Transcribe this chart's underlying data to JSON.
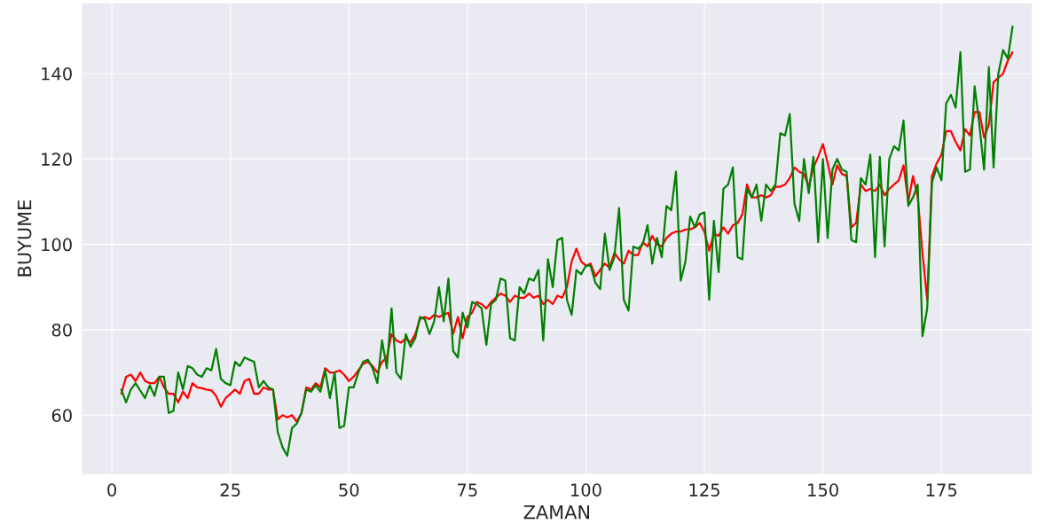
{
  "chart_data": {
    "type": "line",
    "xlabel": "ZAMAN",
    "ylabel": "BUYUME",
    "xlim": [
      -6.4,
      194.2
    ],
    "ylim": [
      46.1,
      156.6
    ],
    "xticks": [
      0,
      25,
      50,
      75,
      100,
      125,
      150,
      175
    ],
    "yticks": [
      60,
      80,
      100,
      120,
      140
    ],
    "grid": true,
    "marker": "none",
    "line_style": "solid",
    "series": [
      {
        "color": "#ff0000",
        "x": [
          2,
          3,
          4,
          5,
          6,
          7,
          8,
          9,
          10,
          11,
          12,
          13,
          14,
          15,
          16,
          17,
          18,
          19,
          20,
          21,
          22,
          23,
          24,
          25,
          26,
          27,
          28,
          29,
          30,
          31,
          32,
          33,
          34,
          35,
          36,
          37,
          38,
          39,
          40,
          41,
          42,
          43,
          44,
          45,
          46,
          47,
          48,
          49,
          50,
          51,
          52,
          53,
          54,
          55,
          56,
          57,
          58,
          59,
          60,
          61,
          62,
          63,
          64,
          65,
          66,
          67,
          68,
          69,
          70,
          71,
          72,
          73,
          74,
          75,
          76,
          77,
          78,
          79,
          80,
          81,
          82,
          83,
          84,
          85,
          86,
          87,
          88,
          89,
          90,
          91,
          92,
          93,
          94,
          95,
          96,
          97,
          98,
          99,
          100,
          101,
          102,
          103,
          104,
          105,
          106,
          107,
          108,
          109,
          110,
          111,
          112,
          113,
          114,
          115,
          116,
          117,
          118,
          119,
          120,
          121,
          122,
          123,
          124,
          125,
          126,
          127,
          128,
          129,
          130,
          131,
          132,
          133,
          134,
          135,
          136,
          137,
          138,
          139,
          140,
          141,
          142,
          143,
          144,
          145,
          146,
          147,
          148,
          149,
          150,
          151,
          152,
          153,
          154,
          155,
          156,
          157,
          158,
          159,
          160,
          161,
          162,
          163,
          164,
          165,
          166,
          167,
          168,
          169,
          170,
          171,
          172,
          173,
          174,
          175,
          176,
          177,
          178,
          179,
          180,
          181,
          182,
          183,
          184,
          185,
          186,
          187,
          188,
          189,
          190
        ],
        "values": [
          65,
          69,
          69.5,
          68,
          70,
          68,
          67.5,
          67.5,
          69,
          66.5,
          65,
          65,
          63,
          65.5,
          64,
          67.5,
          66.5,
          66.3,
          66,
          65.8,
          64.5,
          62,
          64,
          65,
          66,
          65,
          68,
          68.5,
          65,
          65,
          66.5,
          66,
          66,
          59,
          60,
          59.5,
          60,
          58.5,
          60.5,
          66.5,
          66,
          67.5,
          66.5,
          71,
          70,
          70,
          70.5,
          69.5,
          68,
          69,
          70.5,
          72,
          72.5,
          71.5,
          70,
          72.5,
          73.5,
          79,
          77.5,
          77,
          78,
          77,
          79,
          82.5,
          83,
          82.5,
          83.5,
          83,
          83.5,
          84,
          79,
          83,
          78,
          83,
          84,
          86.5,
          86,
          85,
          86.5,
          87.5,
          88.5,
          88,
          86.5,
          88,
          87.5,
          87.5,
          88.5,
          87.5,
          88,
          86,
          87,
          86,
          88,
          87.5,
          90,
          96,
          99,
          96,
          95,
          95.5,
          92.5,
          94,
          95.5,
          94.5,
          98,
          96.5,
          95.5,
          98.5,
          97.5,
          97.5,
          100.5,
          99.5,
          102,
          100,
          99.5,
          101.5,
          102.5,
          103,
          103,
          103.5,
          103.5,
          104,
          105,
          103,
          98.5,
          102.5,
          102,
          104,
          102.5,
          104.5,
          105,
          107,
          114,
          111,
          111,
          111.5,
          111,
          111.5,
          113.5,
          113.5,
          114,
          115.5,
          118,
          117,
          116.5,
          113.5,
          118,
          120.5,
          123.5,
          119,
          114,
          118.5,
          116.5,
          116,
          104,
          105,
          114,
          112.5,
          113,
          112.5,
          114,
          111.5,
          113,
          114,
          115,
          118.5,
          110,
          116,
          111,
          98,
          87,
          116,
          119,
          121,
          126.5,
          126.5,
          124,
          122,
          127,
          125.5,
          131,
          131,
          125,
          128,
          138,
          139,
          140,
          143,
          145
        ]
      },
      {
        "color": "#008000",
        "x": [
          2,
          3,
          4,
          5,
          7,
          8,
          9,
          10,
          11,
          12,
          13,
          14,
          15,
          16,
          17,
          18,
          19,
          20,
          21,
          22,
          23,
          24,
          25,
          26,
          27,
          28,
          29,
          30,
          31,
          32,
          33,
          34,
          35,
          36,
          37,
          38,
          39,
          40,
          41,
          42,
          43,
          44,
          45,
          46,
          47,
          48,
          49,
          50,
          51,
          52,
          53,
          54,
          55,
          56,
          57,
          58,
          59,
          60,
          61,
          62,
          63,
          64,
          65,
          66,
          67,
          68,
          69,
          70,
          71,
          72,
          73,
          74,
          75,
          76,
          77,
          78,
          79,
          80,
          81,
          82,
          83,
          84,
          85,
          86,
          87,
          88,
          89,
          90,
          91,
          92,
          93,
          94,
          95,
          96,
          97,
          98,
          99,
          100,
          101,
          102,
          103,
          104,
          105,
          106,
          107,
          108,
          109,
          110,
          111,
          112,
          113,
          114,
          115,
          116,
          117,
          118,
          119,
          120,
          121,
          122,
          123,
          124,
          125,
          126,
          127,
          128,
          129,
          130,
          131,
          132,
          133,
          134,
          135,
          136,
          137,
          138,
          139,
          140,
          141,
          142,
          143,
          144,
          145,
          146,
          147,
          148,
          149,
          150,
          151,
          152,
          153,
          154,
          155,
          156,
          157,
          158,
          159,
          160,
          161,
          162,
          163,
          164,
          165,
          166,
          167,
          168,
          169,
          170,
          171,
          172,
          173,
          174,
          175,
          176,
          177,
          178,
          179,
          180,
          181,
          182,
          183,
          184,
          185,
          186,
          187,
          188,
          189,
          190
        ],
        "values": [
          66,
          63,
          66,
          67.5,
          64,
          67,
          64.5,
          69,
          69,
          60.5,
          61,
          70,
          66,
          71.5,
          71,
          69.5,
          69,
          71,
          70.5,
          75.5,
          68.5,
          67.5,
          67,
          72.5,
          71.5,
          73.5,
          73,
          72.5,
          66.5,
          68,
          66.5,
          66,
          56,
          52.5,
          50.5,
          57,
          58,
          60.5,
          66,
          65.5,
          67,
          65.5,
          70.5,
          64,
          70,
          57,
          57.5,
          66.5,
          66.5,
          70,
          72.5,
          73,
          71,
          67.5,
          77.5,
          71,
          85,
          70,
          68.5,
          79,
          76,
          78,
          83,
          82.5,
          79,
          82,
          90,
          82,
          92,
          75,
          73.5,
          84,
          80.5,
          86.5,
          86,
          85,
          76.5,
          86,
          87,
          92,
          91.5,
          78,
          77.5,
          90,
          88.5,
          92,
          91.5,
          94,
          77.5,
          96.5,
          90,
          101,
          101.5,
          87,
          83.5,
          94,
          93,
          95,
          95,
          91,
          89.5,
          102.5,
          94,
          97,
          108.5,
          87,
          84.5,
          99.5,
          99,
          100,
          104.5,
          95.5,
          101.5,
          97,
          109,
          108,
          117,
          91.5,
          96,
          106.5,
          104,
          107,
          107.5,
          87,
          105.5,
          93.5,
          113,
          114,
          118,
          97,
          96.5,
          113,
          111,
          114,
          105.5,
          114,
          112.5,
          114,
          126,
          125.5,
          130.5,
          109.5,
          105.5,
          120,
          112,
          120.5,
          100.5,
          120,
          101.5,
          117.5,
          120,
          117.5,
          117,
          101,
          100.5,
          115.5,
          114,
          121,
          97,
          120.5,
          99.5,
          120,
          123,
          122,
          129,
          109,
          111,
          114,
          78.5,
          85,
          114.5,
          118,
          115,
          133,
          135,
          132,
          145,
          117,
          117.5,
          137,
          128,
          117.5,
          141.5,
          118,
          140,
          145.5,
          143.5,
          151
        ]
      }
    ]
  }
}
